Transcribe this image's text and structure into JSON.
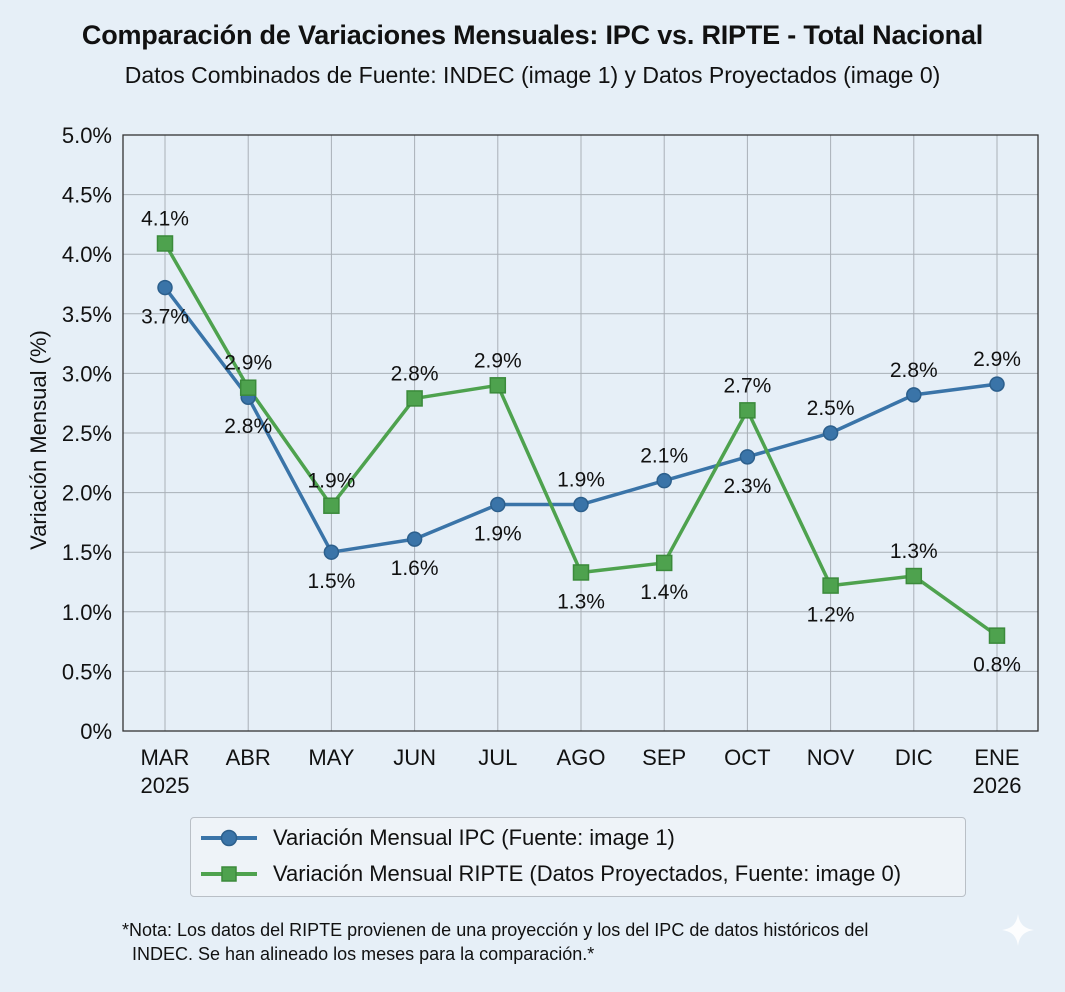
{
  "chart_data": {
    "type": "line",
    "title": "Comparación de Variaciones Mensuales: IPC vs. RIPTE - Total Nacional",
    "subtitle": "Datos Combinados de Fuente: INDEC (image 1) y Datos Proyectados (image 0)",
    "ylabel": "Variación Mensual (%)",
    "xlabel": "",
    "ylim": [
      0,
      5.0
    ],
    "yticks": [
      "0%",
      "0.5%",
      "1.0%",
      "1.5%",
      "2.0%",
      "2.5%",
      "3.0%",
      "3.5%",
      "4.0%",
      "4.5%",
      "5.0%"
    ],
    "categories": [
      [
        "MAR",
        "2025"
      ],
      [
        "ABR"
      ],
      [
        "MAY"
      ],
      [
        "JUN"
      ],
      [
        "JUL"
      ],
      [
        "AGO"
      ],
      [
        "SEP"
      ],
      [
        "OCT"
      ],
      [
        "NOV"
      ],
      [
        "DIC"
      ],
      [
        "ENE",
        "2026"
      ]
    ],
    "grid": true,
    "legend_position": "bottom",
    "series": [
      {
        "name": "Variación Mensual IPC (Fuente: image 1)",
        "marker": "circle",
        "color": "#3a74a8",
        "values": [
          3.72,
          2.8,
          1.5,
          1.61,
          1.9,
          1.9,
          2.1,
          2.3,
          2.5,
          2.82,
          2.91
        ],
        "labels": [
          "3.7%",
          "2.8%",
          "1.5%",
          "1.6%",
          "1.9%",
          "1.9%",
          "2.1%",
          "2.3%",
          "2.5%",
          "2.8%",
          "2.9%"
        ],
        "label_side": [
          "below",
          "below",
          "below",
          "below",
          "below",
          "above",
          "above",
          "below",
          "above",
          "above",
          "above"
        ]
      },
      {
        "name": "Variación Mensual RIPTE (Datos Proyectados, Fuente: image 0)",
        "marker": "square",
        "color": "#4ea24e",
        "values": [
          4.09,
          2.88,
          1.89,
          2.79,
          2.9,
          1.33,
          1.41,
          2.69,
          1.22,
          1.3,
          0.8
        ],
        "labels": [
          "4.1%",
          "2.9%",
          "1.9%",
          "2.8%",
          "2.9%",
          "1.3%",
          "1.4%",
          "2.7%",
          "1.2%",
          "1.3%",
          "0.8%"
        ],
        "label_side": [
          "above",
          "above",
          "above",
          "above",
          "above",
          "below",
          "below",
          "above",
          "below",
          "above",
          "below"
        ]
      }
    ]
  },
  "note": {
    "line1": "*Nota: Los datos del RIPTE provienen de una proyección y los del IPC de datos históricos del",
    "line2": "INDEC. Se han alineado los meses para la comparación.*"
  }
}
